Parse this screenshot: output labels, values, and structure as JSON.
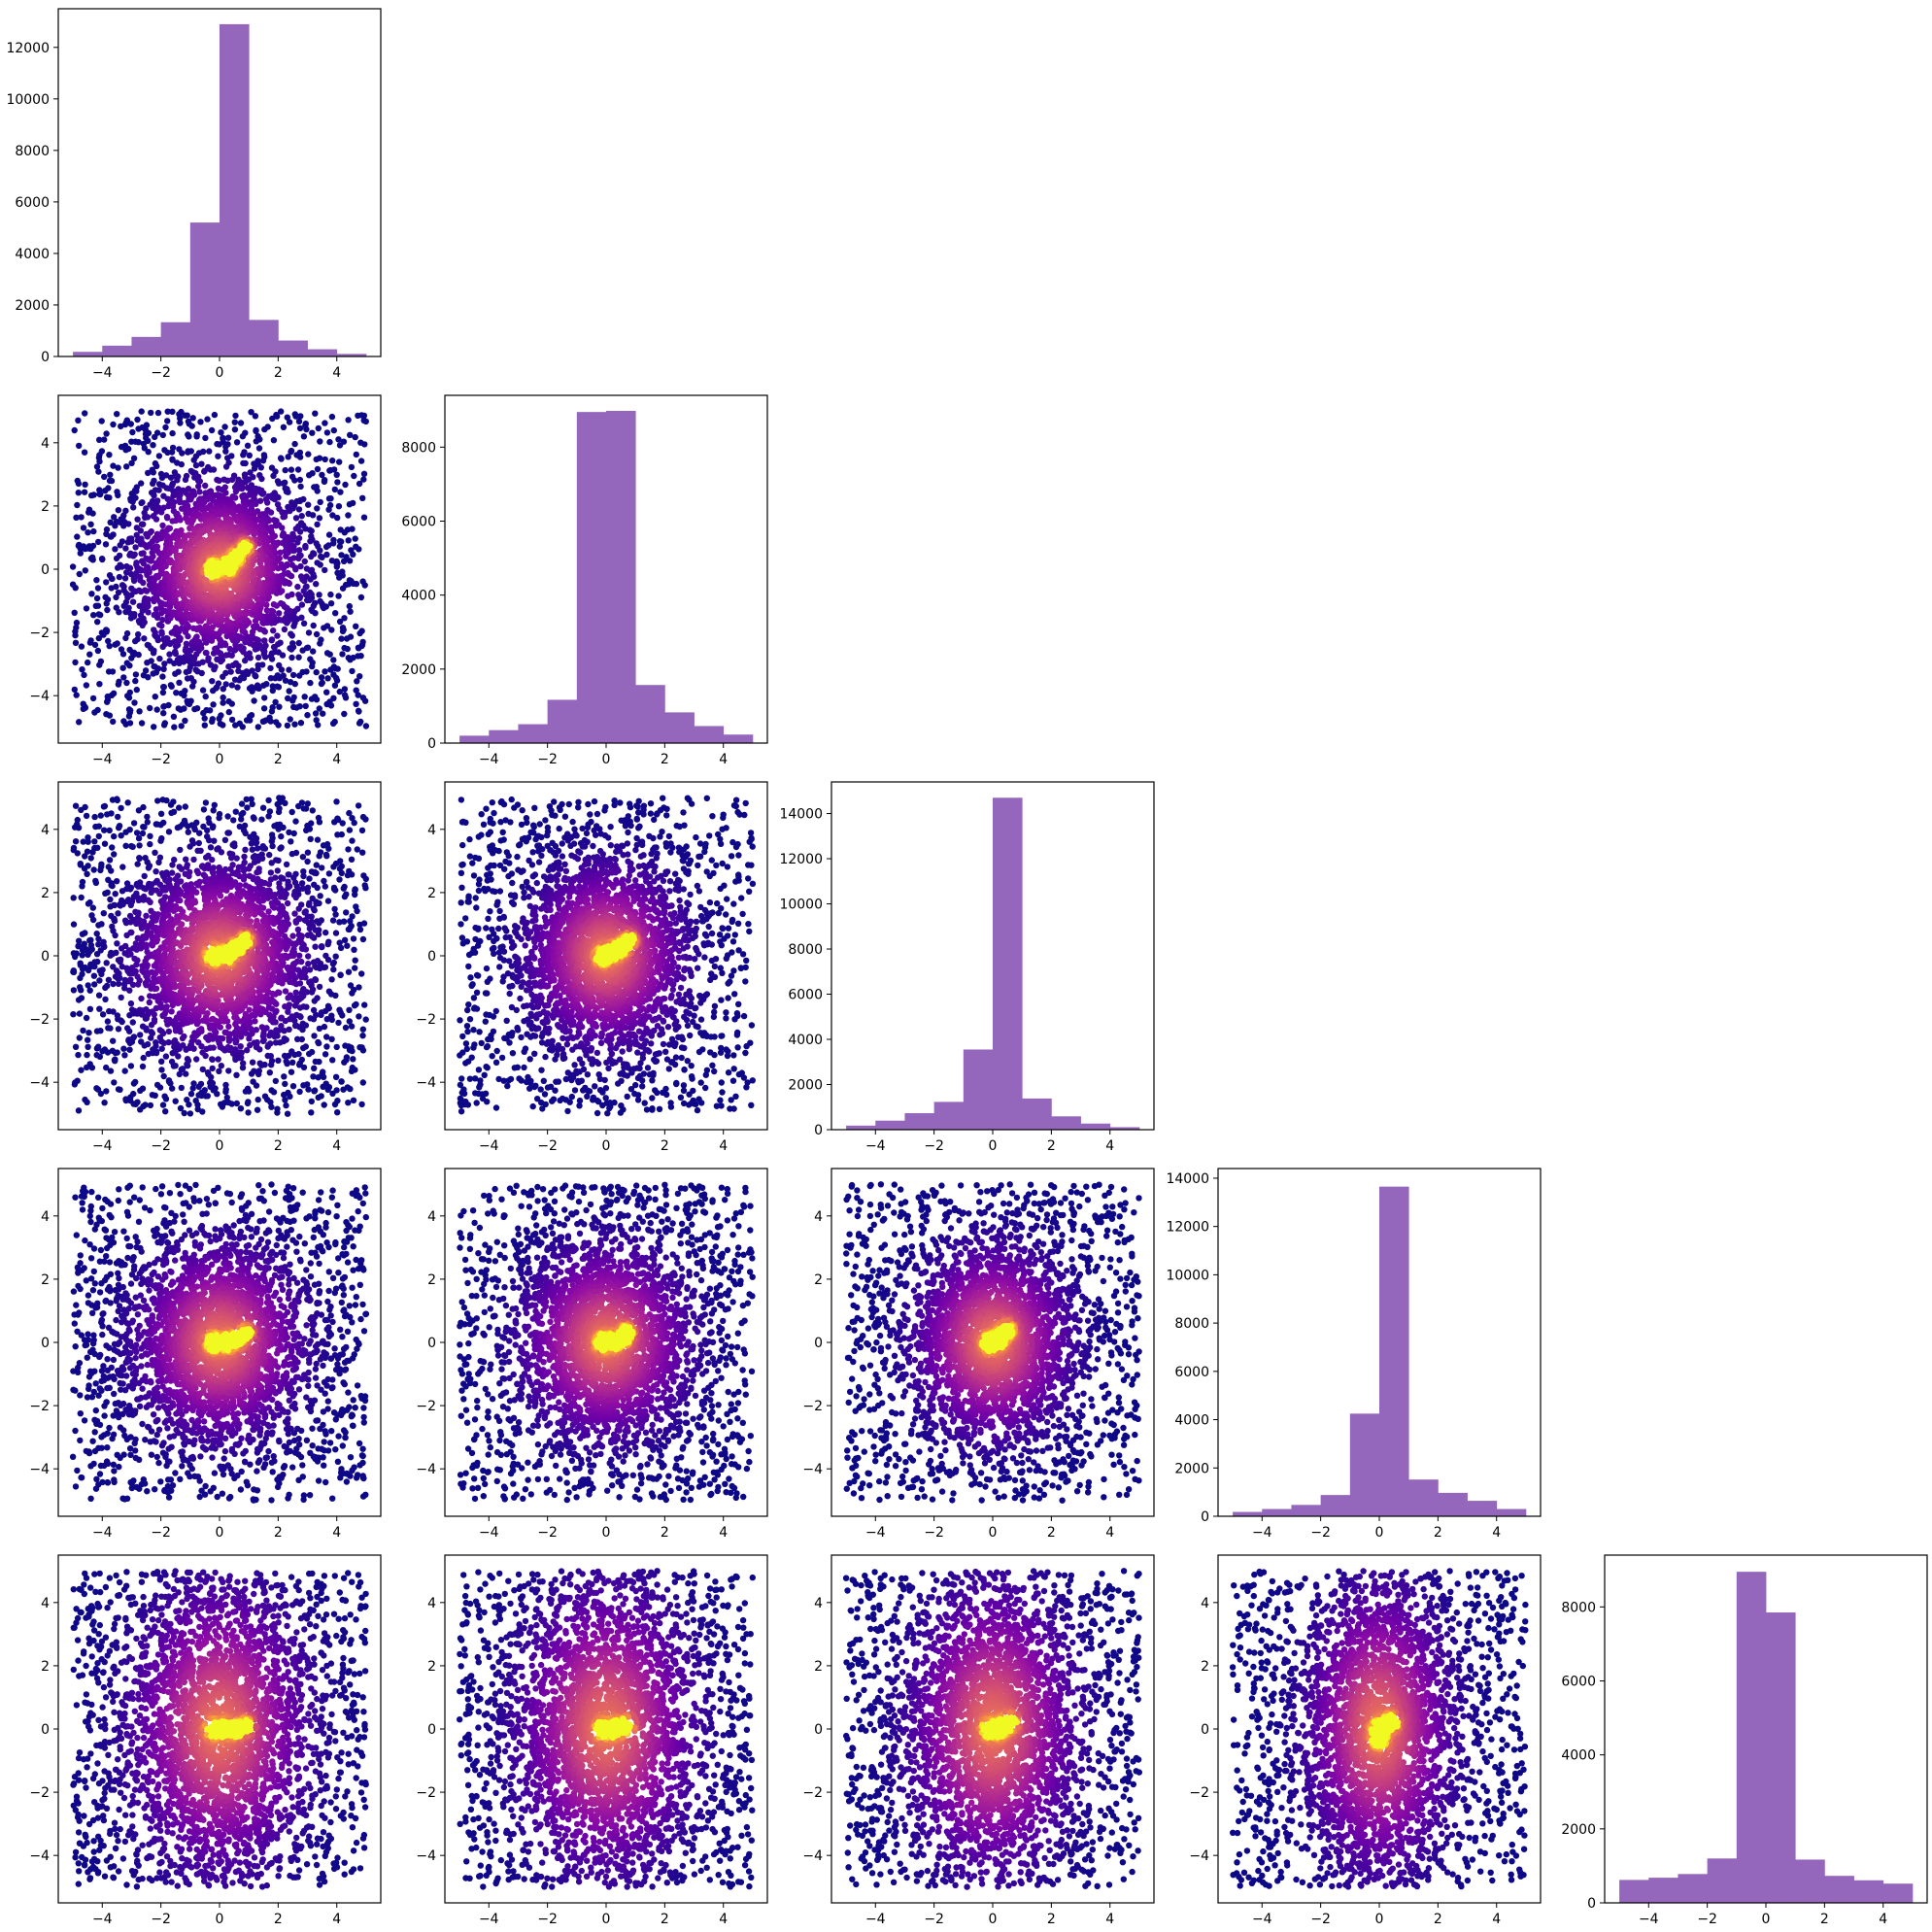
{
  "figure": {
    "layout": "corner (lower-triangular pair plot)",
    "n_dimensions": 5,
    "hist_color": "#9467bd",
    "scatter_colormap": "plasma",
    "scatter_color_low": "#2a0593",
    "scatter_color_high": "#f0f921"
  },
  "chart_data": [
    {
      "type": "bar",
      "panel": "hist-1",
      "row": 0,
      "col": 0,
      "bin_edges": [
        -5,
        -4,
        -3,
        -2,
        -1,
        0,
        1,
        2,
        3,
        4,
        5
      ],
      "values": [
        180,
        420,
        760,
        1330,
        5200,
        12900,
        1420,
        620,
        280,
        100
      ],
      "xlim": [
        -5.5,
        5.5
      ],
      "ylim": [
        0,
        13500
      ],
      "xticks": [
        -4,
        -2,
        0,
        2,
        4
      ],
      "xtick_labels": [
        "−4",
        "−2",
        "0",
        "2",
        "4"
      ],
      "yticks": [
        0,
        2000,
        4000,
        6000,
        8000,
        10000,
        12000
      ],
      "ytick_labels": [
        "0",
        "2000",
        "4000",
        "6000",
        "8000",
        "10000",
        "12000"
      ]
    },
    {
      "type": "scatter",
      "panel": "scatter-2-1",
      "row": 1,
      "col": 0,
      "xlim": [
        -5.5,
        5.5
      ],
      "ylim": [
        -5.5,
        5.5
      ],
      "xticks": [
        -4,
        -2,
        0,
        2,
        4
      ],
      "xtick_labels": [
        "−4",
        "−2",
        "0",
        "2",
        "4"
      ],
      "yticks": [
        -4,
        -2,
        0,
        2,
        4
      ],
      "ytick_labels": [
        "−4",
        "−2",
        "0",
        "2",
        "4"
      ],
      "density_center": [
        0,
        0
      ],
      "dense_arc": [
        [
          -0.2,
          0.0
        ],
        [
          0.3,
          0.1
        ],
        [
          0.6,
          0.4
        ],
        [
          0.9,
          0.7
        ]
      ],
      "spread": [
        1.4,
        1.4
      ],
      "uniform_range": [
        -5,
        5
      ]
    },
    {
      "type": "bar",
      "panel": "hist-2",
      "row": 1,
      "col": 1,
      "bin_edges": [
        -5,
        -4,
        -3,
        -2,
        -1,
        0,
        1,
        2,
        3,
        4,
        5
      ],
      "values": [
        200,
        350,
        510,
        1170,
        8950,
        8980,
        1570,
        830,
        460,
        230
      ],
      "xlim": [
        -5.5,
        5.5
      ],
      "ylim": [
        0,
        9400
      ],
      "xticks": [
        -4,
        -2,
        0,
        2,
        4
      ],
      "xtick_labels": [
        "−4",
        "−2",
        "0",
        "2",
        "4"
      ],
      "yticks": [
        0,
        2000,
        4000,
        6000,
        8000
      ],
      "ytick_labels": [
        "0",
        "2000",
        "4000",
        "6000",
        "8000"
      ]
    },
    {
      "type": "scatter",
      "panel": "scatter-3-1",
      "row": 2,
      "col": 0,
      "xlim": [
        -5.5,
        5.5
      ],
      "ylim": [
        -5.5,
        5.5
      ],
      "xticks": [
        -4,
        -2,
        0,
        2,
        4
      ],
      "xtick_labels": [
        "−4",
        "−2",
        "0",
        "2",
        "4"
      ],
      "yticks": [
        -4,
        -2,
        0,
        2,
        4
      ],
      "ytick_labels": [
        "−4",
        "−2",
        "0",
        "2",
        "4"
      ],
      "density_center": [
        0,
        0
      ],
      "dense_arc": [
        [
          -0.2,
          0.0
        ],
        [
          0.3,
          0.05
        ],
        [
          0.6,
          0.25
        ],
        [
          0.9,
          0.5
        ]
      ],
      "spread": [
        1.5,
        1.5
      ],
      "uniform_range": [
        -5,
        5
      ]
    },
    {
      "type": "scatter",
      "panel": "scatter-3-2",
      "row": 2,
      "col": 1,
      "xlim": [
        -5.5,
        5.5
      ],
      "ylim": [
        -5.5,
        5.5
      ],
      "xticks": [
        -4,
        -2,
        0,
        2,
        4
      ],
      "xtick_labels": [
        "−4",
        "−2",
        "0",
        "2",
        "4"
      ],
      "yticks": [
        -4,
        -2,
        0,
        2,
        4
      ],
      "ytick_labels": [
        "−4",
        "−2",
        "0",
        "2",
        "4"
      ],
      "density_center": [
        0,
        0
      ],
      "dense_arc": [
        [
          -0.1,
          0.0
        ],
        [
          0.3,
          0.15
        ],
        [
          0.6,
          0.3
        ],
        [
          0.8,
          0.5
        ]
      ],
      "spread": [
        1.4,
        1.5
      ],
      "uniform_range": [
        -5,
        5
      ]
    },
    {
      "type": "bar",
      "panel": "hist-3",
      "row": 2,
      "col": 2,
      "bin_edges": [
        -5,
        -4,
        -3,
        -2,
        -1,
        0,
        1,
        2,
        3,
        4,
        5
      ],
      "values": [
        180,
        400,
        730,
        1230,
        3550,
        14700,
        1380,
        590,
        270,
        110
      ],
      "xlim": [
        -5.5,
        5.5
      ],
      "ylim": [
        0,
        15400
      ],
      "xticks": [
        -4,
        -2,
        0,
        2,
        4
      ],
      "xtick_labels": [
        "−4",
        "−2",
        "0",
        "2",
        "4"
      ],
      "yticks": [
        0,
        2000,
        4000,
        6000,
        8000,
        10000,
        12000,
        14000
      ],
      "ytick_labels": [
        "0",
        "2000",
        "4000",
        "6000",
        "8000",
        "10000",
        "12000",
        "14000"
      ]
    },
    {
      "type": "scatter",
      "panel": "scatter-4-1",
      "row": 3,
      "col": 0,
      "xlim": [
        -5.5,
        5.5
      ],
      "ylim": [
        -5.5,
        5.5
      ],
      "xticks": [
        -4,
        -2,
        0,
        2,
        4
      ],
      "xtick_labels": [
        "−4",
        "−2",
        "0",
        "2",
        "4"
      ],
      "yticks": [
        -4,
        -2,
        0,
        2,
        4
      ],
      "ytick_labels": [
        "−4",
        "−2",
        "0",
        "2",
        "4"
      ],
      "density_center": [
        0,
        0
      ],
      "dense_arc": [
        [
          -0.2,
          0.0
        ],
        [
          0.3,
          0.0
        ],
        [
          0.6,
          0.1
        ],
        [
          0.9,
          0.3
        ]
      ],
      "spread": [
        1.5,
        1.6
      ],
      "uniform_range": [
        -5,
        5
      ]
    },
    {
      "type": "scatter",
      "panel": "scatter-4-2",
      "row": 3,
      "col": 1,
      "xlim": [
        -5.5,
        5.5
      ],
      "ylim": [
        -5.5,
        5.5
      ],
      "xticks": [
        -4,
        -2,
        0,
        2,
        4
      ],
      "xtick_labels": [
        "−4",
        "−2",
        "0",
        "2",
        "4"
      ],
      "yticks": [
        -4,
        -2,
        0,
        2,
        4
      ],
      "ytick_labels": [
        "−4",
        "−2",
        "0",
        "2",
        "4"
      ],
      "density_center": [
        0,
        0
      ],
      "dense_arc": [
        [
          -0.1,
          0.0
        ],
        [
          0.3,
          0.05
        ],
        [
          0.6,
          0.15
        ],
        [
          0.7,
          0.3
        ]
      ],
      "spread": [
        1.5,
        1.6
      ],
      "uniform_range": [
        -5,
        5
      ]
    },
    {
      "type": "scatter",
      "panel": "scatter-4-3",
      "row": 3,
      "col": 2,
      "xlim": [
        -5.5,
        5.5
      ],
      "ylim": [
        -5.5,
        5.5
      ],
      "xticks": [
        -4,
        -2,
        0,
        2,
        4
      ],
      "xtick_labels": [
        "−4",
        "−2",
        "0",
        "2",
        "4"
      ],
      "yticks": [
        -4,
        -2,
        0,
        2,
        4
      ],
      "ytick_labels": [
        "−4",
        "−2",
        "0",
        "2",
        "4"
      ],
      "density_center": [
        0,
        0
      ],
      "dense_arc": [
        [
          -0.1,
          0.0
        ],
        [
          0.2,
          0.1
        ],
        [
          0.4,
          0.3
        ],
        [
          0.5,
          0.4
        ]
      ],
      "spread": [
        1.4,
        1.6
      ],
      "uniform_range": [
        -5,
        5
      ]
    },
    {
      "type": "bar",
      "panel": "hist-4",
      "row": 3,
      "col": 3,
      "bin_edges": [
        -5,
        -4,
        -3,
        -2,
        -1,
        0,
        1,
        2,
        3,
        4,
        5
      ],
      "values": [
        180,
        300,
        470,
        880,
        4250,
        13650,
        1520,
        970,
        640,
        300
      ],
      "xlim": [
        -5.5,
        5.5
      ],
      "ylim": [
        0,
        14400
      ],
      "xticks": [
        -4,
        -2,
        0,
        2,
        4
      ],
      "xtick_labels": [
        "−4",
        "−2",
        "0",
        "2",
        "4"
      ],
      "yticks": [
        0,
        2000,
        4000,
        6000,
        8000,
        10000,
        12000,
        14000
      ],
      "ytick_labels": [
        "0",
        "2000",
        "4000",
        "6000",
        "8000",
        "10000",
        "12000",
        "14000"
      ]
    },
    {
      "type": "scatter",
      "panel": "scatter-5-1",
      "row": 4,
      "col": 0,
      "xlim": [
        -5.5,
        5.5
      ],
      "ylim": [
        -5.5,
        5.5
      ],
      "xticks": [
        -4,
        -2,
        0,
        2,
        4
      ],
      "xtick_labels": [
        "−4",
        "−2",
        "0",
        "2",
        "4"
      ],
      "yticks": [
        -4,
        -2,
        0,
        2,
        4
      ],
      "ytick_labels": [
        "−4",
        "−2",
        "0",
        "2",
        "4"
      ],
      "density_center": [
        0,
        0
      ],
      "dense_arc": [
        [
          -0.2,
          0.0
        ],
        [
          0.2,
          0.0
        ],
        [
          0.6,
          0.0
        ],
        [
          0.9,
          0.1
        ]
      ],
      "spread": [
        1.6,
        2.4
      ],
      "uniform_range": [
        -5,
        5
      ]
    },
    {
      "type": "scatter",
      "panel": "scatter-5-2",
      "row": 4,
      "col": 1,
      "xlim": [
        -5.5,
        5.5
      ],
      "ylim": [
        -5.5,
        5.5
      ],
      "xticks": [
        -4,
        -2,
        0,
        2,
        4
      ],
      "xtick_labels": [
        "−4",
        "−2",
        "0",
        "2",
        "4"
      ],
      "yticks": [
        -4,
        -2,
        0,
        2,
        4
      ],
      "ytick_labels": [
        "−4",
        "−2",
        "0",
        "2",
        "4"
      ],
      "density_center": [
        0,
        0
      ],
      "dense_arc": [
        [
          -0.1,
          0.0
        ],
        [
          0.2,
          0.0
        ],
        [
          0.5,
          0.05
        ],
        [
          0.7,
          0.1
        ]
      ],
      "spread": [
        1.6,
        2.4
      ],
      "uniform_range": [
        -5,
        5
      ]
    },
    {
      "type": "scatter",
      "panel": "scatter-5-3",
      "row": 4,
      "col": 2,
      "xlim": [
        -5.5,
        5.5
      ],
      "ylim": [
        -5.5,
        5.5
      ],
      "xticks": [
        -4,
        -2,
        0,
        2,
        4
      ],
      "xtick_labels": [
        "−4",
        "−2",
        "0",
        "2",
        "4"
      ],
      "yticks": [
        -4,
        -2,
        0,
        2,
        4
      ],
      "ytick_labels": [
        "−4",
        "−2",
        "0",
        "2",
        "4"
      ],
      "density_center": [
        0,
        0
      ],
      "dense_arc": [
        [
          -0.1,
          0.0
        ],
        [
          0.2,
          0.0
        ],
        [
          0.4,
          0.1
        ],
        [
          0.6,
          0.2
        ]
      ],
      "spread": [
        1.5,
        2.4
      ],
      "uniform_range": [
        -5,
        5
      ]
    },
    {
      "type": "scatter",
      "panel": "scatter-5-4",
      "row": 4,
      "col": 3,
      "xlim": [
        -5.5,
        5.5
      ],
      "ylim": [
        -5.5,
        5.5
      ],
      "xticks": [
        -4,
        -2,
        0,
        2,
        4
      ],
      "xtick_labels": [
        "−4",
        "−2",
        "0",
        "2",
        "4"
      ],
      "yticks": [
        -4,
        -2,
        0,
        2,
        4
      ],
      "ytick_labels": [
        "−4",
        "−2",
        "0",
        "2",
        "4"
      ],
      "density_center": [
        0,
        0
      ],
      "dense_arc": [
        [
          0.0,
          -0.3
        ],
        [
          0.0,
          0.0
        ],
        [
          0.2,
          0.1
        ],
        [
          0.4,
          0.2
        ]
      ],
      "spread": [
        1.3,
        2.4
      ],
      "uniform_range": [
        -5,
        5
      ]
    },
    {
      "type": "bar",
      "panel": "hist-5",
      "row": 4,
      "col": 4,
      "bin_edges": [
        -5,
        -4,
        -3,
        -2,
        -1,
        0,
        1,
        2,
        3,
        4,
        5
      ],
      "values": [
        620,
        680,
        780,
        1200,
        8950,
        7850,
        1170,
        730,
        610,
        520
      ],
      "xlim": [
        -5.5,
        5.5
      ],
      "ylim": [
        0,
        9400
      ],
      "xticks": [
        -4,
        -2,
        0,
        2,
        4
      ],
      "xtick_labels": [
        "−4",
        "−2",
        "0",
        "2",
        "4"
      ],
      "yticks": [
        0,
        2000,
        4000,
        6000,
        8000
      ],
      "ytick_labels": [
        "0",
        "2000",
        "4000",
        "6000",
        "8000"
      ]
    }
  ]
}
